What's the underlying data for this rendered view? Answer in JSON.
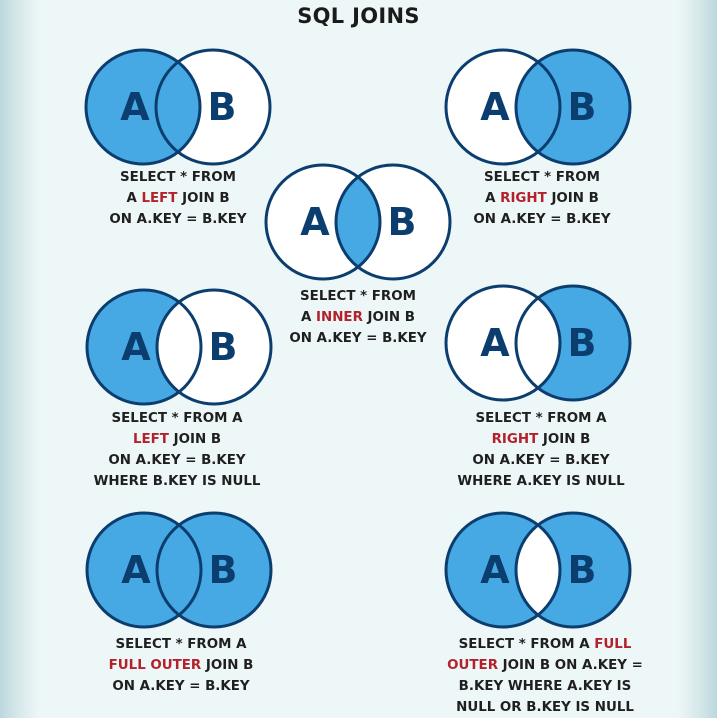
{
  "title": "SQL JOINS",
  "colors": {
    "fill": "#47a9e4",
    "stroke": "#0b3d6e",
    "keyword": "#b3212b",
    "background": "#eef7f7"
  },
  "joins": {
    "left_join": {
      "shaded": [
        "A_only",
        "intersection"
      ],
      "label_a": "A",
      "label_b": "B",
      "lines": [
        [
          "SELECT * FROM"
        ],
        [
          "A ",
          "LEFT",
          " JOIN B"
        ],
        [
          "ON A.KEY = B.KEY"
        ]
      ]
    },
    "right_join": {
      "shaded": [
        "intersection",
        "B_only"
      ],
      "label_a": "A",
      "label_b": "B",
      "lines": [
        [
          "SELECT * FROM"
        ],
        [
          "A ",
          "RIGHT",
          " JOIN B"
        ],
        [
          "ON A.KEY = B.KEY"
        ]
      ]
    },
    "inner_join": {
      "shaded": [
        "intersection"
      ],
      "label_a": "A",
      "label_b": "B",
      "lines": [
        [
          "SELECT * FROM"
        ],
        [
          "A ",
          "INNER",
          " JOIN B"
        ],
        [
          "ON A.KEY = B.KEY"
        ]
      ]
    },
    "left_excluding": {
      "shaded": [
        "A_only"
      ],
      "label_a": "A",
      "label_b": "B",
      "lines": [
        [
          "SELECT * FROM A"
        ],
        [
          "",
          "LEFT",
          " JOIN B"
        ],
        [
          "ON A.KEY = B.KEY"
        ],
        [
          "WHERE B.KEY IS NULL"
        ]
      ]
    },
    "right_excluding": {
      "shaded": [
        "B_only"
      ],
      "label_a": "A",
      "label_b": "B",
      "lines": [
        [
          "SELECT * FROM A"
        ],
        [
          "",
          "RIGHT",
          " JOIN B"
        ],
        [
          "ON A.KEY = B.KEY"
        ],
        [
          "WHERE A.KEY IS NULL"
        ]
      ]
    },
    "full_outer": {
      "shaded": [
        "A_only",
        "intersection",
        "B_only"
      ],
      "label_a": "A",
      "label_b": "B",
      "lines": [
        [
          "SELECT * FROM A"
        ],
        [
          "",
          "FULL OUTER",
          " JOIN B"
        ],
        [
          "ON A.KEY = B.KEY"
        ]
      ]
    },
    "full_outer_excluding": {
      "shaded": [
        "A_only",
        "B_only"
      ],
      "label_a": "A",
      "label_b": "B",
      "lines": [
        [
          "SELECT * FROM A ",
          "FULL",
          ""
        ],
        [
          "",
          "OUTER",
          " JOIN B ON A.KEY ="
        ],
        [
          "B.KEY WHERE A.KEY IS"
        ],
        [
          "NULL OR B.KEY IS NULL"
        ]
      ]
    }
  }
}
